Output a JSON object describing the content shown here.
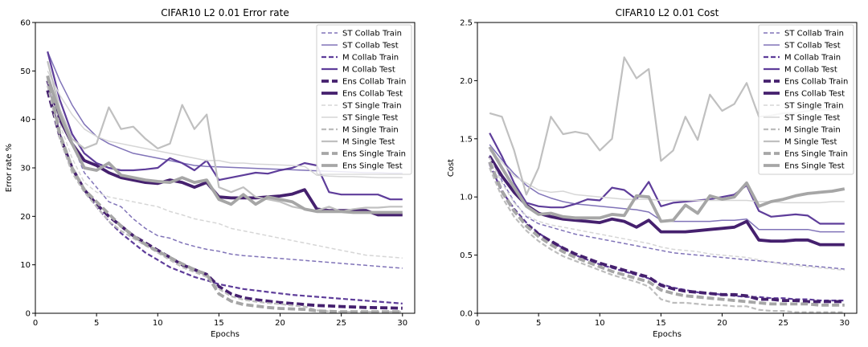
{
  "chart_data": [
    {
      "type": "line",
      "title": "CIFAR10 L2 0.01 Error rate",
      "xlabel": "Epochs",
      "ylabel": "Error rate %",
      "xlim": [
        0,
        31
      ],
      "ylim": [
        0,
        60
      ],
      "xticks": [
        0,
        5,
        10,
        15,
        20,
        25,
        30
      ],
      "yticks": [
        0,
        10,
        20,
        30,
        40,
        50,
        60
      ],
      "legend_position": "top-right",
      "x": [
        1,
        2,
        3,
        4,
        5,
        6,
        7,
        8,
        9,
        10,
        11,
        12,
        13,
        14,
        15,
        16,
        17,
        18,
        19,
        20,
        21,
        22,
        23,
        24,
        25,
        26,
        27,
        28,
        29,
        30
      ],
      "series": [
        {
          "name": "ST Collab Train",
          "values": [
            52,
            42,
            35,
            29,
            26,
            23,
            22,
            19.5,
            17.5,
            16,
            15.5,
            14.5,
            13.8,
            13.2,
            12.8,
            12.2,
            11.9,
            11.7,
            11.5,
            11.3,
            11.1,
            10.9,
            10.7,
            10.5,
            10.3,
            10.1,
            9.9,
            9.7,
            9.5,
            9.3
          ]
        },
        {
          "name": "ST Collab Test",
          "values": [
            54,
            48,
            43,
            39,
            36.5,
            35,
            34,
            33,
            32.5,
            32,
            31.5,
            31,
            30.5,
            30.3,
            30.2,
            30.1,
            30,
            29.9,
            29.8,
            29.7,
            29.6,
            29.5,
            29.4,
            29.3,
            29.2,
            29.1,
            29,
            29,
            28.9,
            28.9
          ]
        },
        {
          "name": "M Collab Train",
          "values": [
            47,
            37,
            30,
            25.5,
            22,
            19,
            16.5,
            14.5,
            12.5,
            11,
            9.5,
            8.5,
            7.5,
            6.8,
            6,
            5.5,
            5,
            4.7,
            4.4,
            4.1,
            3.8,
            3.6,
            3.4,
            3.2,
            3,
            2.8,
            2.6,
            2.4,
            2.2,
            2
          ]
        },
        {
          "name": "M Collab Test",
          "values": [
            54,
            44,
            37,
            33,
            31,
            30,
            29.5,
            29.5,
            29.7,
            30,
            32,
            31,
            29.5,
            31.5,
            27.5,
            28,
            28.5,
            29,
            28.8,
            29.5,
            30,
            31,
            30.5,
            25,
            24.5,
            24.5,
            24.5,
            24.5,
            23.5,
            23.5
          ]
        },
        {
          "name": "Ens Collab Train",
          "values": [
            46,
            36.5,
            30,
            25.5,
            22.5,
            20,
            18,
            16,
            14.5,
            13,
            11.5,
            10,
            9,
            8,
            5.5,
            4,
            3.2,
            2.8,
            2.5,
            2.2,
            2,
            1.8,
            1.6,
            1.5,
            1.4,
            1.3,
            1.2,
            1.15,
            1.1,
            1.05
          ]
        },
        {
          "name": "Ens Collab Test",
          "values": [
            48,
            40,
            35,
            31.5,
            30.5,
            29,
            28,
            27.5,
            27,
            26.8,
            27.5,
            27,
            26,
            27,
            24,
            23.8,
            23.8,
            23.8,
            24,
            24.2,
            24.6,
            25.5,
            21.5,
            21.2,
            21.2,
            21.2,
            21.2,
            20.3,
            20.3,
            20.3
          ]
        },
        {
          "name": "ST Single Train",
          "values": [
            48,
            39,
            32,
            27,
            25,
            24,
            23.5,
            23,
            22.5,
            22,
            21,
            20.3,
            19.5,
            19,
            18.5,
            17.5,
            17,
            16.5,
            16,
            15.5,
            15,
            14.5,
            14,
            13.5,
            13,
            12.5,
            12,
            11.8,
            11.6,
            11.4
          ]
        },
        {
          "name": "ST Single Test",
          "values": [
            50,
            45,
            41,
            38,
            36.5,
            35.5,
            35,
            34.5,
            34,
            33.5,
            33,
            32.5,
            32,
            31.5,
            31.5,
            31,
            31,
            30.8,
            30.7,
            30.6,
            30.5,
            30.3,
            28.5,
            28.3,
            28.2,
            28.2,
            28.1,
            28,
            28,
            28
          ]
        },
        {
          "name": "M Single Train",
          "values": [
            47,
            36,
            29,
            25,
            22,
            19,
            17,
            15.5,
            14,
            12.5,
            11,
            9.5,
            8.5,
            7.5,
            5,
            3.5,
            2.8,
            2.4,
            2.1,
            1.9,
            1.6,
            1.4,
            0.6,
            0.4,
            0.3,
            0.3,
            0.3,
            0.3,
            0.3,
            0.3
          ]
        },
        {
          "name": "M Single Test",
          "values": [
            52,
            42,
            36,
            34,
            35,
            42.5,
            38,
            38.5,
            36,
            34,
            35,
            43,
            38,
            41,
            26,
            25,
            26,
            24,
            23.5,
            23,
            22,
            21.5,
            21.2,
            22,
            21,
            21.5,
            21.8,
            21.8,
            22,
            22
          ]
        },
        {
          "name": "Ens Single Train",
          "values": [
            49,
            37,
            30,
            25.5,
            23,
            20.5,
            18,
            16,
            14.2,
            12.8,
            11.5,
            10.2,
            9,
            8,
            4,
            2.5,
            1.8,
            1.5,
            1.2,
            1,
            0.9,
            0.8,
            0.5,
            0.4,
            0.3,
            0.3,
            0.3,
            0.3,
            0.3,
            0.3
          ]
        },
        {
          "name": "Ens Single Test",
          "values": [
            49,
            41,
            35,
            30,
            29.5,
            31,
            28.5,
            28,
            27.5,
            27.2,
            27,
            28,
            27,
            27.5,
            23.5,
            22.5,
            24.5,
            22.5,
            24,
            23.5,
            23,
            21.5,
            21,
            21,
            21,
            20.8,
            20.8,
            20.8,
            20.8,
            20.8
          ]
        }
      ]
    },
    {
      "type": "line",
      "title": "CIFAR10 L2 0.01 Cost",
      "xlabel": "Epochs",
      "ylabel": "Cost",
      "xlim": [
        0,
        31
      ],
      "ylim": [
        0,
        2.5
      ],
      "xticks": [
        0,
        5,
        10,
        15,
        20,
        25,
        30
      ],
      "yticks": [
        0.0,
        0.5,
        1.0,
        1.5,
        2.0,
        2.5
      ],
      "legend_position": "top-right",
      "x": [
        1,
        2,
        3,
        4,
        5,
        6,
        7,
        8,
        9,
        10,
        11,
        12,
        13,
        14,
        15,
        16,
        17,
        18,
        19,
        20,
        21,
        22,
        23,
        24,
        25,
        26,
        27,
        28,
        29,
        30
      ],
      "series": [
        {
          "name": "ST Collab Train",
          "values": [
            1.36,
            1.14,
            0.96,
            0.83,
            0.77,
            0.74,
            0.71,
            0.68,
            0.66,
            0.64,
            0.62,
            0.6,
            0.58,
            0.56,
            0.54,
            0.52,
            0.51,
            0.5,
            0.49,
            0.48,
            0.47,
            0.46,
            0.45,
            0.44,
            0.43,
            0.42,
            0.41,
            0.4,
            0.39,
            0.38
          ]
        },
        {
          "name": "ST Collab Test",
          "values": [
            1.45,
            1.32,
            1.2,
            1.1,
            1.03,
            0.99,
            0.96,
            0.94,
            0.93,
            0.92,
            0.91,
            0.9,
            0.89,
            0.87,
            0.8,
            0.79,
            0.79,
            0.79,
            0.79,
            0.8,
            0.8,
            0.81,
            0.72,
            0.72,
            0.72,
            0.72,
            0.72,
            0.7,
            0.7,
            0.7
          ]
        },
        {
          "name": "M Collab Train",
          "values": [
            1.28,
            1.05,
            0.9,
            0.78,
            0.69,
            0.62,
            0.56,
            0.5,
            0.46,
            0.42,
            0.39,
            0.36,
            0.33,
            0.3,
            0.25,
            0.22,
            0.2,
            0.18,
            0.17,
            0.16,
            0.15,
            0.14,
            0.14,
            0.13,
            0.13,
            0.12,
            0.12,
            0.11,
            0.11,
            0.11
          ]
        },
        {
          "name": "M Collab Test",
          "values": [
            1.55,
            1.35,
            1.12,
            0.95,
            0.92,
            0.91,
            0.91,
            0.94,
            0.98,
            0.97,
            1.08,
            1.06,
            0.98,
            1.13,
            0.92,
            0.95,
            0.96,
            0.97,
            0.98,
            1.0,
            1.02,
            1.1,
            0.88,
            0.83,
            0.84,
            0.85,
            0.84,
            0.77,
            0.77,
            0.77
          ]
        },
        {
          "name": "Ens Collab Train",
          "values": [
            1.3,
            1.05,
            0.88,
            0.76,
            0.68,
            0.62,
            0.56,
            0.51,
            0.47,
            0.43,
            0.4,
            0.37,
            0.34,
            0.31,
            0.24,
            0.21,
            0.19,
            0.18,
            0.17,
            0.16,
            0.16,
            0.15,
            0.12,
            0.12,
            0.11,
            0.11,
            0.1,
            0.1,
            0.1,
            0.1
          ]
        },
        {
          "name": "Ens Collab Test",
          "values": [
            1.35,
            1.18,
            1.04,
            0.93,
            0.86,
            0.83,
            0.81,
            0.8,
            0.79,
            0.78,
            0.81,
            0.79,
            0.74,
            0.8,
            0.7,
            0.7,
            0.7,
            0.71,
            0.72,
            0.73,
            0.74,
            0.79,
            0.63,
            0.62,
            0.62,
            0.63,
            0.63,
            0.59,
            0.59,
            0.59
          ]
        },
        {
          "name": "ST Single Train",
          "values": [
            1.34,
            1.12,
            0.95,
            0.84,
            0.79,
            0.76,
            0.74,
            0.72,
            0.7,
            0.68,
            0.66,
            0.64,
            0.62,
            0.6,
            0.57,
            0.55,
            0.54,
            0.53,
            0.51,
            0.5,
            0.49,
            0.48,
            0.46,
            0.44,
            0.42,
            0.41,
            0.4,
            0.39,
            0.38,
            0.37
          ]
        },
        {
          "name": "ST Single Test",
          "values": [
            1.4,
            1.3,
            1.18,
            1.12,
            1.06,
            1.04,
            1.05,
            1.02,
            1.01,
            1.0,
            0.99,
            0.98,
            0.98,
            0.98,
            0.97,
            0.97,
            0.97,
            0.97,
            0.97,
            0.97,
            0.97,
            0.97,
            0.96,
            0.96,
            0.95,
            0.95,
            0.95,
            0.95,
            0.96,
            0.96
          ]
        },
        {
          "name": "M Single Train",
          "values": [
            1.25,
            1.0,
            0.83,
            0.71,
            0.62,
            0.55,
            0.49,
            0.45,
            0.41,
            0.37,
            0.33,
            0.3,
            0.27,
            0.23,
            0.12,
            0.09,
            0.09,
            0.08,
            0.07,
            0.07,
            0.06,
            0.06,
            0.03,
            0.02,
            0.02,
            0.01,
            0.01,
            0.01,
            0.01,
            0.01
          ]
        },
        {
          "name": "M Single Test",
          "values": [
            1.72,
            1.69,
            1.4,
            1.02,
            1.25,
            1.69,
            1.54,
            1.56,
            1.54,
            1.4,
            1.5,
            2.2,
            2.02,
            2.1,
            1.31,
            1.4,
            1.69,
            1.49,
            1.88,
            1.74,
            1.8,
            1.98,
            1.69,
            1.7,
            1.72,
            1.72,
            1.74,
            1.75,
            1.75,
            1.76
          ]
        },
        {
          "name": "Ens Single Train",
          "values": [
            1.3,
            1.05,
            0.88,
            0.75,
            0.66,
            0.59,
            0.53,
            0.48,
            0.44,
            0.4,
            0.36,
            0.33,
            0.3,
            0.27,
            0.2,
            0.17,
            0.15,
            0.14,
            0.13,
            0.12,
            0.11,
            0.1,
            0.09,
            0.08,
            0.08,
            0.08,
            0.08,
            0.07,
            0.07,
            0.07
          ]
        },
        {
          "name": "Ens Single Test",
          "values": [
            1.43,
            1.25,
            1.08,
            0.92,
            0.85,
            0.86,
            0.83,
            0.82,
            0.82,
            0.82,
            0.85,
            0.84,
            1.01,
            1.0,
            0.79,
            0.8,
            0.93,
            0.86,
            1.01,
            0.98,
            1.0,
            1.12,
            0.92,
            0.96,
            0.98,
            1.01,
            1.03,
            1.04,
            1.05,
            1.07
          ]
        }
      ]
    }
  ],
  "styles": {
    "ST Collab Train": {
      "color": "#8073b8",
      "width": 1.5,
      "dash": "5,3"
    },
    "ST Collab Test": {
      "color": "#8073b8",
      "width": 1.5,
      "dash": ""
    },
    "M Collab Train": {
      "color": "#5e3d9a",
      "width": 2.2,
      "dash": "6,3"
    },
    "M Collab Test": {
      "color": "#5e3d9a",
      "width": 2.2,
      "dash": ""
    },
    "Ens Collab Train": {
      "color": "#45206e",
      "width": 3.8,
      "dash": "9,4"
    },
    "Ens Collab Test": {
      "color": "#45206e",
      "width": 3.8,
      "dash": ""
    },
    "ST Single Train": {
      "color": "#d6d6d6",
      "width": 1.5,
      "dash": "5,3"
    },
    "ST Single Test": {
      "color": "#d6d6d6",
      "width": 1.5,
      "dash": ""
    },
    "M Single Train": {
      "color": "#bdbdbd",
      "width": 2.2,
      "dash": "6,3"
    },
    "M Single Test": {
      "color": "#c0c0c0",
      "width": 2.2,
      "dash": ""
    },
    "Ens Single Train": {
      "color": "#a6a6a6",
      "width": 3.8,
      "dash": "9,4"
    },
    "Ens Single Test": {
      "color": "#a6a6a6",
      "width": 3.8,
      "dash": ""
    }
  }
}
